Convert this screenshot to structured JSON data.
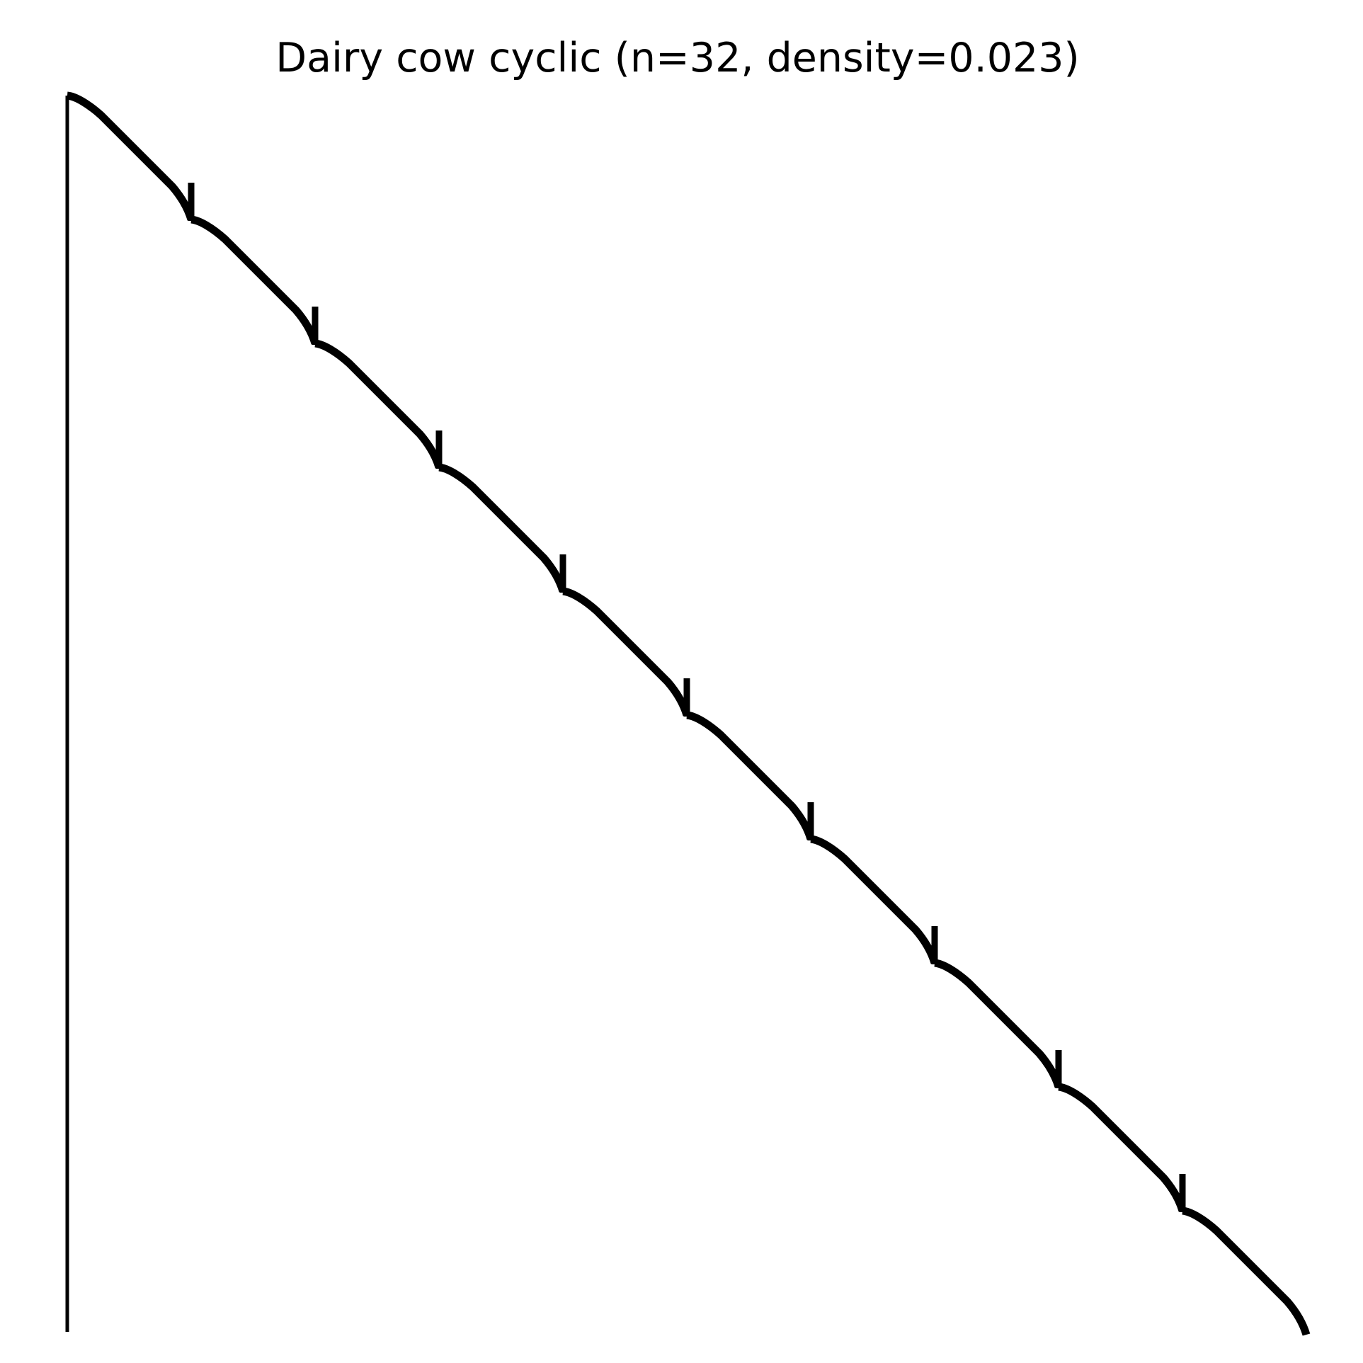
{
  "figure": {
    "title": "Dairy cow cyclic (n=32, density=0.023)"
  },
  "diagram": {
    "type": "profile",
    "segment_count": 10
  },
  "colors": {
    "background": "#ffffff",
    "ink": "#000000"
  }
}
